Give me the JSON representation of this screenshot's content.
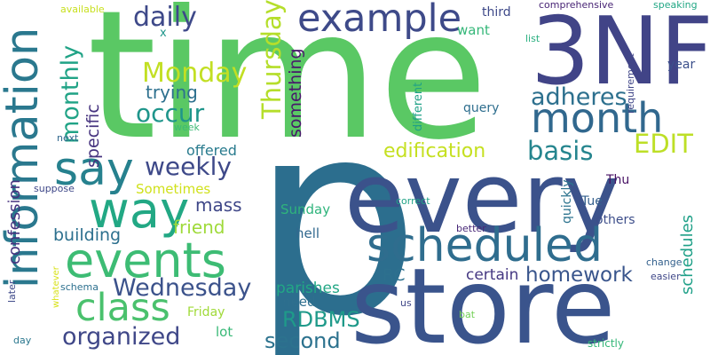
{
  "words": [
    {
      "text": "p",
      "color": "#2c6e8e"
    },
    {
      "text": "time",
      "color": "#5ac864"
    },
    {
      "text": "every",
      "color": "#3b528b"
    },
    {
      "text": "store",
      "color": "#3a548c"
    },
    {
      "text": "3NF",
      "color": "#414487"
    },
    {
      "text": "information",
      "color": "#2a788e"
    },
    {
      "text": "scheduled",
      "color": "#2f6d8e"
    },
    {
      "text": "events",
      "color": "#3dbc74"
    },
    {
      "text": "way",
      "color": "#22a884"
    },
    {
      "text": "say",
      "color": "#26818e"
    },
    {
      "text": "month",
      "color": "#31688e"
    },
    {
      "text": "example",
      "color": "#3e4a89"
    },
    {
      "text": "class",
      "color": "#4ac16d"
    },
    {
      "text": "Thursday",
      "color": "#b5de2b"
    },
    {
      "text": "adheres",
      "color": "#2d708e"
    },
    {
      "text": "daily",
      "color": "#3e4989"
    },
    {
      "text": "Monday",
      "color": "#c2df23"
    },
    {
      "text": "monthly",
      "color": "#20a386"
    },
    {
      "text": "occur",
      "color": "#1f958b"
    },
    {
      "text": "weekly",
      "color": "#3e4989"
    },
    {
      "text": "Wednesday",
      "color": "#3b528b"
    },
    {
      "text": "organized",
      "color": "#3f4788"
    },
    {
      "text": "basis",
      "color": "#25858e"
    },
    {
      "text": "EDIT",
      "color": "#bddf26"
    },
    {
      "text": "something",
      "color": "#48196b"
    },
    {
      "text": "edification",
      "color": "#c5e021"
    },
    {
      "text": "homework",
      "color": "#39558c"
    },
    {
      "text": "RDBMS",
      "color": "#1f9a8a"
    },
    {
      "text": "second",
      "color": "#2c728e"
    },
    {
      "text": "confession",
      "color": "#46327e"
    },
    {
      "text": "specific",
      "color": "#46337f"
    },
    {
      "text": "trying",
      "color": "#2d708e"
    },
    {
      "text": "mass",
      "color": "#3f4788"
    },
    {
      "text": "friend",
      "color": "#9fda3a"
    },
    {
      "text": "building",
      "color": "#2d708e"
    },
    {
      "text": "Sometimes",
      "color": "#d0e11c"
    },
    {
      "text": "offered",
      "color": "#297b8e"
    },
    {
      "text": "parishes",
      "color": "#22a785"
    },
    {
      "text": "RC",
      "color": "#2d708e"
    },
    {
      "text": "certain",
      "color": "#453882"
    },
    {
      "text": "schedules",
      "color": "#1fa088"
    },
    {
      "text": "Sunday",
      "color": "#2fb47c"
    },
    {
      "text": "hell",
      "color": "#31688e"
    },
    {
      "text": "need",
      "color": "#2e6f8e"
    },
    {
      "text": "Friday",
      "color": "#a0da39"
    },
    {
      "text": "lot",
      "color": "#38b977"
    },
    {
      "text": "want",
      "color": "#35b779"
    },
    {
      "text": "third",
      "color": "#3e4989"
    },
    {
      "text": "year",
      "color": "#3c508b"
    },
    {
      "text": "query",
      "color": "#2e6e8e"
    },
    {
      "text": "different",
      "color": "#1fa187"
    },
    {
      "text": "quickly",
      "color": "#2c738e"
    },
    {
      "text": "Tue",
      "color": "#35608d"
    },
    {
      "text": "Thu",
      "color": "#471164"
    },
    {
      "text": "others",
      "color": "#3d4e8a"
    },
    {
      "text": "comprehensive",
      "color": "#482475"
    },
    {
      "text": "speaking",
      "color": "#22a785"
    },
    {
      "text": "available",
      "color": "#c8e020"
    },
    {
      "text": "list",
      "color": "#29af7f"
    },
    {
      "text": "requirement",
      "color": "#404688"
    },
    {
      "text": "x",
      "color": "#1f968b"
    },
    {
      "text": "week",
      "color": "#3bbb75"
    },
    {
      "text": "next",
      "color": "#31688e"
    },
    {
      "text": "suppose",
      "color": "#3f4889"
    },
    {
      "text": "correct",
      "color": "#20a386"
    },
    {
      "text": "better",
      "color": "#482878"
    },
    {
      "text": "change",
      "color": "#34618d"
    },
    {
      "text": "easier",
      "color": "#3f4788"
    },
    {
      "text": "later",
      "color": "#3e4989"
    },
    {
      "text": "whatever",
      "color": "#d8e219"
    },
    {
      "text": "schema",
      "color": "#2d708e"
    },
    {
      "text": "us",
      "color": "#3f4788"
    },
    {
      "text": "bat",
      "color": "#73d056"
    },
    {
      "text": "day",
      "color": "#2a778e"
    },
    {
      "text": "strictly",
      "color": "#35b779"
    }
  ]
}
